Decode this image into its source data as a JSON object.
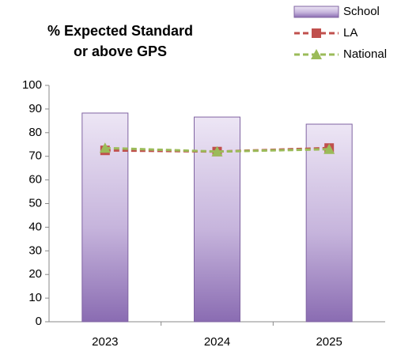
{
  "chart_data": {
    "type": "bar",
    "title": [
      "% Expected Standard",
      "or above GPS"
    ],
    "categories": [
      "2023",
      "2024",
      "2025"
    ],
    "series": [
      {
        "name": "School",
        "type": "bar",
        "color": "#8064a2",
        "values": [
          88.3,
          86.6,
          83.6
        ]
      },
      {
        "name": "LA",
        "type": "line",
        "color": "#c0504d",
        "values": [
          72.5,
          72,
          73.5
        ]
      },
      {
        "name": "National",
        "type": "line",
        "color": "#9bbb59",
        "values": [
          73.5,
          72,
          73
        ]
      }
    ],
    "ylim": [
      0,
      100
    ],
    "yticks": [
      0,
      10,
      20,
      30,
      40,
      50,
      60,
      70,
      80,
      90,
      100
    ],
    "grid": false,
    "legend": "top-right"
  }
}
